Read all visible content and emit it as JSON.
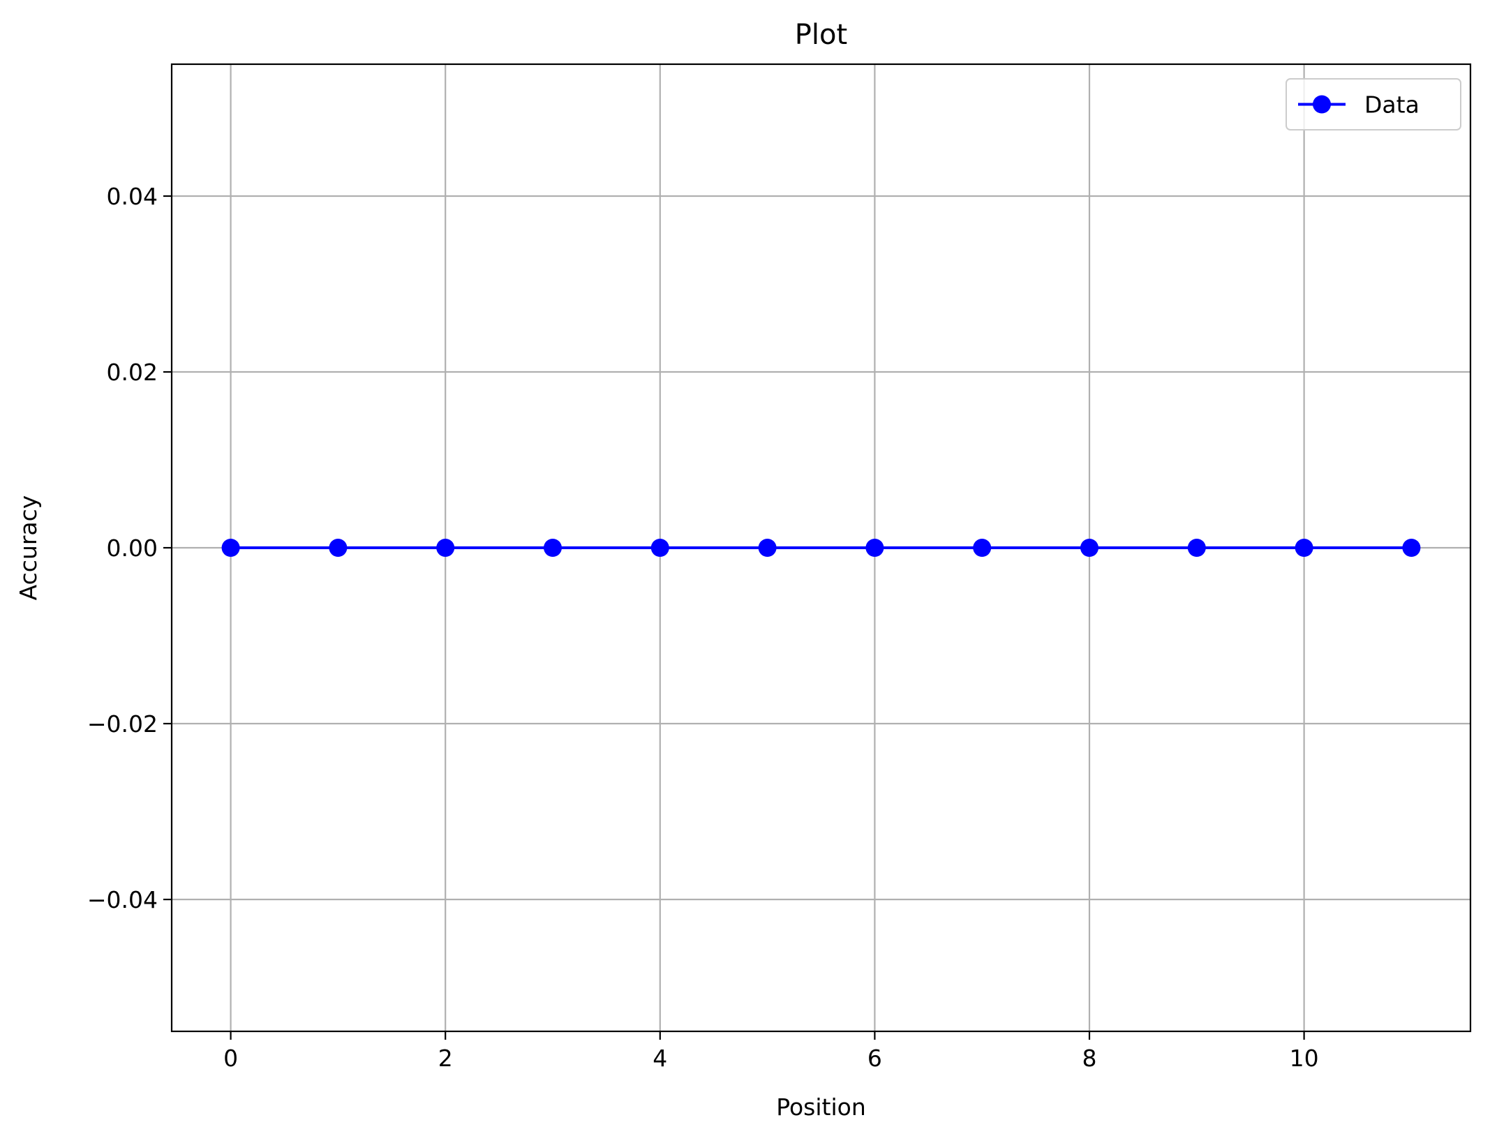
{
  "chart_data": {
    "type": "line",
    "title": "Plot",
    "xlabel": "Position",
    "ylabel": "Accuracy",
    "xlim": [
      -0.55,
      11.55
    ],
    "ylim": [
      -0.055,
      0.055
    ],
    "xticks": [
      0,
      2,
      4,
      6,
      8,
      10
    ],
    "xtick_labels": [
      "0",
      "2",
      "4",
      "6",
      "8",
      "10"
    ],
    "yticks": [
      -0.04,
      -0.02,
      0.0,
      0.02,
      0.04
    ],
    "ytick_labels": [
      "−0.04",
      "−0.02",
      "0.00",
      "0.02",
      "0.04"
    ],
    "grid": true,
    "legend_position": "top-right",
    "series": [
      {
        "name": "Data",
        "color": "#0000ff",
        "marker": "circle",
        "x": [
          0,
          1,
          2,
          3,
          4,
          5,
          6,
          7,
          8,
          9,
          10,
          11
        ],
        "y": [
          0,
          0,
          0,
          0,
          0,
          0,
          0,
          0,
          0,
          0,
          0,
          0
        ]
      }
    ]
  }
}
